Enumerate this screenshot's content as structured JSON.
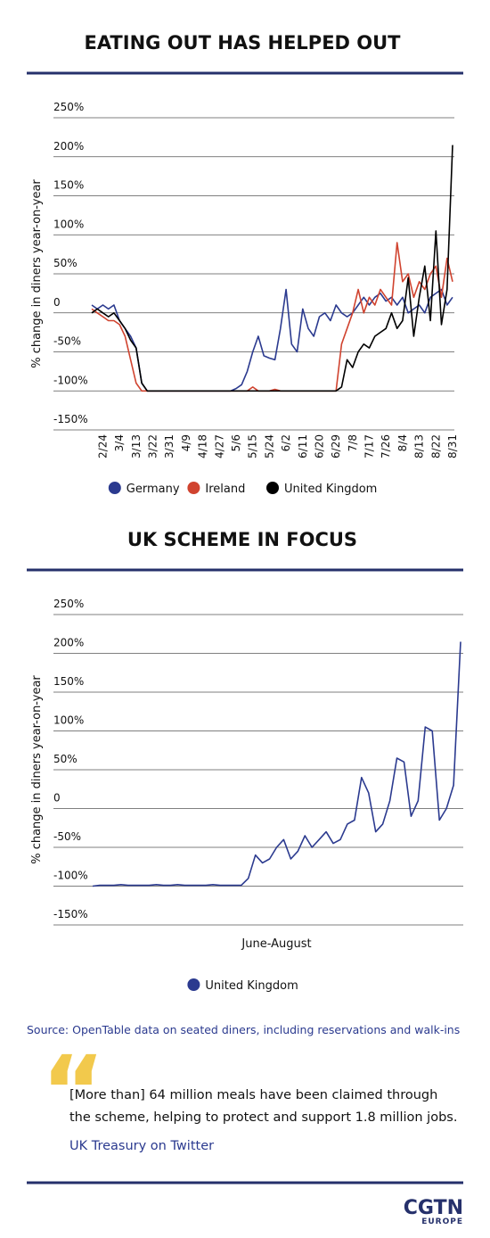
{
  "chart_data": [
    {
      "type": "line",
      "title": "EATING OUT HAS HELPED OUT",
      "ylabel": "% change in diners year-on-year",
      "categories": [
        null,
        null,
        "2/24",
        null,
        null,
        "3/4",
        null,
        null,
        "3/13",
        null,
        null,
        "3/22",
        null,
        null,
        "3/31",
        null,
        null,
        "4/9",
        null,
        null,
        "4/18",
        null,
        null,
        "4/27",
        null,
        null,
        "5/6",
        null,
        null,
        "5/15",
        null,
        null,
        "5/24",
        null,
        null,
        "6/2",
        null,
        null,
        "6/11",
        null,
        null,
        "6/20",
        null,
        null,
        "6/29",
        null,
        null,
        "7/8",
        null,
        null,
        "7/17",
        null,
        null,
        "7/26",
        null,
        null,
        "8/4",
        null,
        null,
        "8/13",
        null,
        null,
        "8/22",
        null,
        null,
        "8/31"
      ],
      "series": [
        {
          "name": "Germany",
          "color": "#2b3a8f",
          "values": [
            10,
            5,
            10,
            5,
            10,
            -10,
            -20,
            -30,
            -45,
            -90,
            -100,
            -100,
            -100,
            -100,
            -100,
            -100,
            -100,
            -100,
            -100,
            -100,
            -100,
            -100,
            -100,
            -100,
            -100,
            -100,
            -97,
            -92,
            -75,
            -50,
            -30,
            -55,
            -58,
            -60,
            -20,
            30,
            -40,
            -50,
            5,
            -20,
            -30,
            -5,
            0,
            -10,
            10,
            0,
            -5,
            0,
            10,
            20,
            10,
            20,
            25,
            15,
            20,
            10,
            20,
            0,
            5,
            10,
            0,
            20,
            25,
            30,
            10,
            20
          ]
        },
        {
          "name": "Ireland",
          "color": "#d0432f",
          "values": [
            5,
            0,
            -5,
            -10,
            -10,
            -15,
            -30,
            -60,
            -90,
            -100,
            -100,
            -100,
            -100,
            -100,
            -100,
            -100,
            -100,
            -100,
            -100,
            -100,
            -100,
            -100,
            -100,
            -100,
            -100,
            -100,
            -100,
            -100,
            -100,
            -95,
            -100,
            -100,
            -100,
            -98,
            -100,
            -100,
            -100,
            -100,
            -100,
            -100,
            -100,
            -100,
            -100,
            -100,
            -100,
            -40,
            -20,
            0,
            30,
            0,
            20,
            10,
            30,
            20,
            10,
            90,
            40,
            50,
            20,
            40,
            30,
            50,
            60,
            20,
            70,
            40
          ]
        },
        {
          "name": "United Kingdom",
          "color": "#000000",
          "values": [
            0,
            5,
            0,
            -5,
            0,
            -10,
            -20,
            -35,
            -45,
            -90,
            -100,
            -100,
            -100,
            -100,
            -100,
            -100,
            -100,
            -100,
            -100,
            -100,
            -100,
            -100,
            -100,
            -100,
            -100,
            -100,
            -100,
            -100,
            -100,
            -100,
            -100,
            -100,
            -100,
            -100,
            -100,
            -100,
            -100,
            -100,
            -100,
            -100,
            -100,
            -100,
            -100,
            -100,
            -100,
            -95,
            -60,
            -70,
            -50,
            -40,
            -45,
            -30,
            -25,
            -20,
            0,
            -20,
            -10,
            45,
            -30,
            20,
            60,
            -10,
            105,
            -15,
            30,
            215
          ]
        }
      ],
      "ylim": [
        -150,
        250
      ],
      "yticks": [
        {
          "value": 250,
          "label": "250%"
        },
        {
          "value": 200,
          "label": "200%"
        },
        {
          "value": 150,
          "label": "150%"
        },
        {
          "value": 100,
          "label": "100%"
        },
        {
          "value": 50,
          "label": "50%"
        },
        0,
        {
          "value": -50,
          "label": "-50%"
        },
        {
          "value": -100,
          "label": "-100%"
        },
        {
          "value": -150,
          "label": "-150%"
        }
      ],
      "grid": true
    },
    {
      "type": "line",
      "title": "UK SCHEME IN FOCUS",
      "ylabel": "% change in diners year-on-year",
      "xlabel": "June-August",
      "series": [
        {
          "name": "United Kingdom",
          "color": "#2b3a8f",
          "values": [
            -100,
            -99,
            -99,
            -99,
            -98,
            -99,
            -99,
            -99,
            -99,
            -98,
            -99,
            -99,
            -98,
            -99,
            -99,
            -99,
            -99,
            -98,
            -99,
            -99,
            -99,
            -99,
            -90,
            -60,
            -70,
            -65,
            -50,
            -40,
            -65,
            -55,
            -35,
            -50,
            -40,
            -30,
            -45,
            -40,
            -20,
            -15,
            40,
            20,
            -30,
            -20,
            10,
            65,
            60,
            -10,
            10,
            105,
            100,
            -15,
            0,
            30,
            215
          ]
        }
      ],
      "ylim": [
        -150,
        250
      ],
      "yticks": [
        {
          "value": 250,
          "label": "250%"
        },
        {
          "value": 200,
          "label": "200%"
        },
        {
          "value": 150,
          "label": "150%"
        },
        {
          "value": 100,
          "label": "100%"
        },
        {
          "value": 50,
          "label": "50%"
        },
        0,
        {
          "value": -50,
          "label": "-50%"
        },
        {
          "value": -100,
          "label": "-100%"
        },
        {
          "value": -150,
          "label": "-150%"
        }
      ],
      "grid": true
    }
  ],
  "source": "Source: OpenTable data on seated diners, including reservations and walk-ins",
  "quote": {
    "line1": "[More than] 64 million meals have been claimed through",
    "line2": "the scheme, helping to protect and support 1.8 million jobs.",
    "attribution": "UK Treasury on Twitter"
  },
  "logo": {
    "name": "CGTN",
    "sub": "EUROPE"
  }
}
